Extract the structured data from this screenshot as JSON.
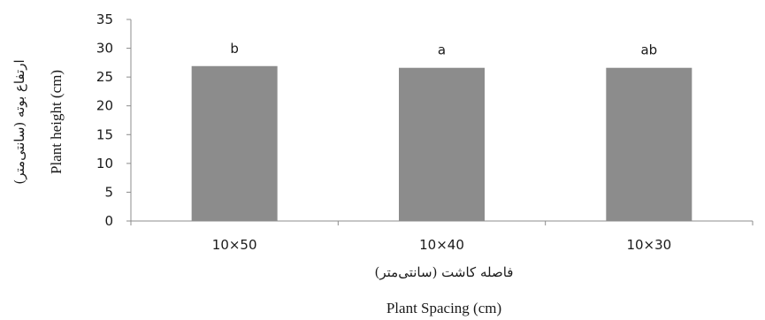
{
  "chart_data": {
    "type": "bar",
    "categories": [
      "10×50",
      "10×40",
      "10×30"
    ],
    "values": [
      26.9,
      26.6,
      26.6
    ],
    "significance_letters": [
      "b",
      "a",
      "ab"
    ],
    "xlabel_fa": "فاصله کاشت (سانتی‌متر)",
    "xlabel_en": "Plant Spacing (cm)",
    "ylabel_fa": "ارتفاع بوته (سانتی‌متر)",
    "ylabel_en": "Plant height (cm)",
    "ylim": [
      0,
      35
    ],
    "yticks": [
      0,
      5,
      10,
      15,
      20,
      25,
      30,
      35
    ],
    "grid": false,
    "legend": "none",
    "bar_color": "#8c8c8c",
    "axis_color": "#8c8c8c"
  }
}
